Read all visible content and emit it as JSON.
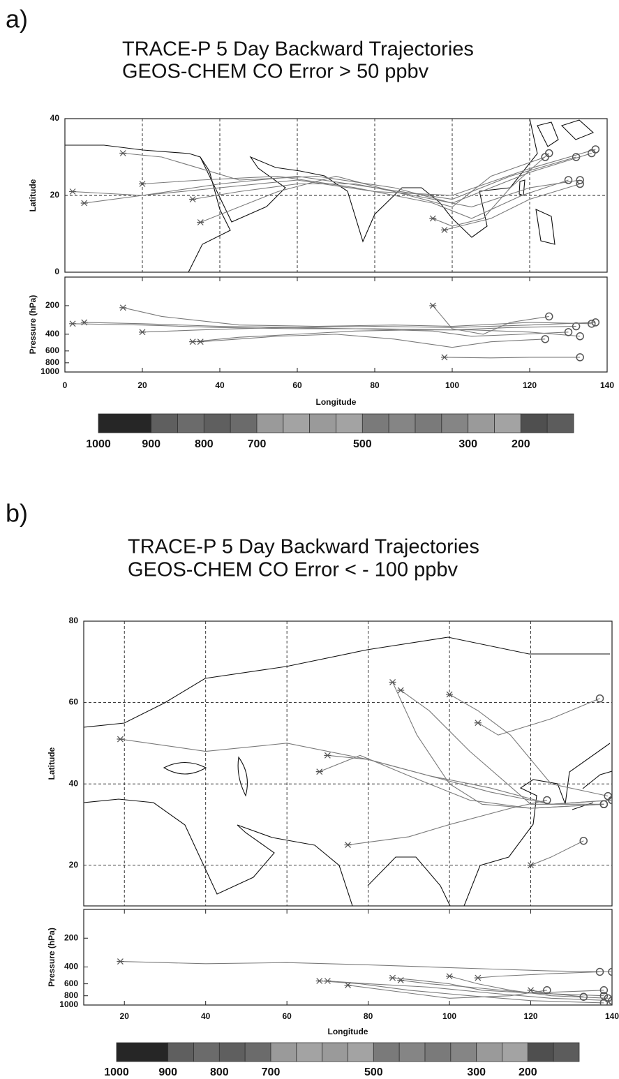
{
  "chart_data": [
    {
      "type": "trajectory",
      "panel_label": "a)",
      "title": "TRACE-P 5 Day Backward Trajectories",
      "subtitle": "GEOS-CHEM CO Error > 50 ppbv",
      "xlabel": "Longitude",
      "xlim": [
        0,
        140
      ],
      "xticks": [
        0,
        20,
        40,
        60,
        80,
        100,
        120,
        140
      ],
      "map": {
        "ylabel": "Latitude",
        "ylim": [
          0,
          40
        ],
        "yticks": [
          0,
          20,
          40
        ]
      },
      "pressure_panel": {
        "ylabel": "Pressure (hPa)",
        "ylim": [
          1000,
          100
        ],
        "log": true,
        "yticks": [
          200,
          400,
          600,
          800,
          1000
        ]
      },
      "grid": true,
      "color": "#7a7a7a",
      "colorbar": {
        "lim": [
          1000,
          100
        ],
        "bounds": [
          1000,
          900,
          850,
          800,
          750,
          700,
          650,
          600,
          550,
          500,
          450,
          400,
          350,
          300,
          250,
          200,
          150,
          100
        ],
        "colors": [
          "#262626",
          "#5f5f5f",
          "#6b6b6b",
          "#5f5f5f",
          "#6b6b6b",
          "#9a9a9a",
          "#a3a3a3",
          "#9a9a9a",
          "#a3a3a3",
          "#7a7a7a",
          "#858585",
          "#7a7a7a",
          "#858585",
          "#9a9a9a",
          "#a3a3a3",
          "#4f4f4f",
          "#5c5c5c"
        ],
        "ticks": [
          1000,
          900,
          800,
          700,
          500,
          300,
          200
        ]
      },
      "series": [
        {
          "x": [
            137,
            120,
            100,
            80,
            60,
            40,
            20,
            5
          ],
          "values": [
            32,
            27,
            20,
            21,
            24,
            22,
            20,
            18
          ],
          "pressure": [
            300,
            320,
            340,
            330,
            340,
            330,
            310,
            300
          ]
        },
        {
          "x": [
            132,
            115,
            100,
            80,
            60,
            40,
            20,
            2
          ],
          "values": [
            30,
            25,
            19,
            22,
            25,
            23,
            20,
            21
          ],
          "pressure": [
            330,
            340,
            360,
            350,
            350,
            340,
            320,
            310
          ]
        },
        {
          "x": [
            136,
            120,
            100,
            85,
            65,
            45,
            25,
            15
          ],
          "values": [
            31,
            26,
            18,
            22,
            25,
            24,
            30,
            31
          ],
          "pressure": [
            310,
            300,
            330,
            320,
            330,
            320,
            260,
            210
          ]
        },
        {
          "x": [
            133,
            120,
            105,
            90,
            75,
            60,
            45,
            33
          ],
          "values": [
            24,
            22,
            17,
            20,
            23,
            23,
            21,
            19
          ],
          "pressure": [
            420,
            380,
            360,
            360,
            370,
            400,
            430,
            480
          ]
        },
        {
          "x": [
            130,
            118,
            105,
            95,
            75,
            55,
            35,
            20
          ],
          "values": [
            24,
            20,
            14,
            18,
            22,
            25,
            24,
            23
          ],
          "pressure": [
            380,
            400,
            420,
            370,
            350,
            340,
            360,
            380
          ]
        },
        {
          "x": [
            125,
            115,
            108,
            100,
            95
          ],
          "values": [
            31,
            22,
            14,
            12,
            14
          ],
          "pressure": [
            260,
            300,
            400,
            350,
            200
          ]
        },
        {
          "x": [
            133,
            120,
            110,
            98
          ],
          "values": [
            23,
            19,
            14,
            11
          ],
          "pressure": [
            700,
            700,
            710,
            700
          ]
        },
        {
          "x": [
            124,
            110,
            100,
            85,
            70,
            55,
            35
          ],
          "values": [
            30,
            25,
            17,
            21,
            25,
            21,
            13
          ],
          "pressure": [
            450,
            480,
            550,
            450,
            400,
            420,
            480
          ]
        }
      ]
    },
    {
      "type": "trajectory",
      "panel_label": "b)",
      "title": "TRACE-P 5 Day Backward Trajectories",
      "subtitle": "GEOS-CHEM CO Error < - 100 ppbv",
      "xlabel": "Longitude",
      "xlim": [
        10,
        140
      ],
      "xticks": [
        20,
        40,
        60,
        80,
        100,
        120,
        140
      ],
      "map": {
        "ylabel": "Latitude",
        "ylim": [
          10,
          80
        ],
        "yticks": [
          20,
          40,
          60,
          80
        ]
      },
      "pressure_panel": {
        "ylabel": "Pressure (hPa)",
        "ylim": [
          1000,
          100
        ],
        "log": true,
        "yticks": [
          200,
          400,
          600,
          800,
          1000
        ]
      },
      "grid": true,
      "color": "#7a7a7a",
      "colorbar": {
        "lim": [
          1000,
          100
        ],
        "bounds": [
          1000,
          900,
          850,
          800,
          750,
          700,
          650,
          600,
          550,
          500,
          450,
          400,
          350,
          300,
          250,
          200,
          150,
          100
        ],
        "colors": [
          "#262626",
          "#5f5f5f",
          "#6b6b6b",
          "#5f5f5f",
          "#6b6b6b",
          "#9a9a9a",
          "#a3a3a3",
          "#9a9a9a",
          "#a3a3a3",
          "#7a7a7a",
          "#858585",
          "#7a7a7a",
          "#858585",
          "#9a9a9a",
          "#a3a3a3",
          "#4f4f4f",
          "#5c5c5c"
        ],
        "ticks": [
          1000,
          900,
          800,
          700,
          500,
          300,
          200
        ]
      },
      "series": [
        {
          "x": [
            140,
            125,
            110,
            95,
            80,
            60,
            40,
            19
          ],
          "values": [
            36,
            35,
            38,
            42,
            46,
            50,
            48,
            51
          ],
          "pressure": [
            450,
            440,
            420,
            400,
            380,
            360,
            370,
            350
          ]
        },
        {
          "x": [
            138,
            120,
            105,
            95,
            88
          ],
          "values": [
            35,
            35,
            48,
            58,
            63
          ],
          "pressure": [
            800,
            750,
            650,
            600,
            550
          ]
        },
        {
          "x": [
            139,
            125,
            115,
            107,
            100
          ],
          "values": [
            37,
            40,
            52,
            58,
            62
          ],
          "pressure": [
            850,
            800,
            700,
            600,
            500
          ]
        },
        {
          "x": [
            140,
            125,
            110,
            95,
            80,
            70
          ],
          "values": [
            36,
            35,
            39,
            42,
            46,
            47
          ],
          "pressure": [
            900,
            850,
            750,
            650,
            600,
            560
          ]
        },
        {
          "x": [
            138,
            120,
            108,
            100,
            92,
            86
          ],
          "values": [
            35,
            34,
            35,
            40,
            52,
            65
          ],
          "pressure": [
            700,
            750,
            700,
            600,
            550,
            520
          ]
        },
        {
          "x": [
            124,
            115,
            100,
            90,
            75
          ],
          "values": [
            36,
            34,
            30,
            27,
            25
          ],
          "pressure": [
            700,
            800,
            850,
            750,
            620
          ]
        },
        {
          "x": [
            133,
            125,
            120
          ],
          "values": [
            26,
            22,
            20
          ],
          "pressure": [
            820,
            760,
            700
          ]
        },
        {
          "x": [
            137,
            125,
            112,
            107
          ],
          "values": [
            61,
            56,
            52,
            55
          ],
          "pressure": [
            450,
            470,
            500,
            520
          ]
        },
        {
          "x": [
            138,
            120,
            105,
            90,
            78,
            68
          ],
          "values": [
            35,
            34,
            36,
            42,
            47,
            43
          ],
          "pressure": [
            950,
            900,
            800,
            700,
            600,
            560
          ]
        }
      ]
    }
  ]
}
